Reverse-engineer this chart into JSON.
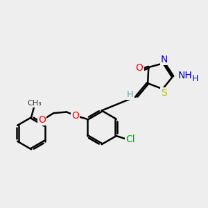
{
  "bg_color": "#eeeeee",
  "bond_color": "#000000",
  "bond_width": 1.8,
  "atom_colors": {
    "O": "#ff0000",
    "N": "#0000cc",
    "S": "#bbbb00",
    "Cl": "#00aa00",
    "H": "#559999",
    "C": "#000000"
  },
  "font_size": 9
}
